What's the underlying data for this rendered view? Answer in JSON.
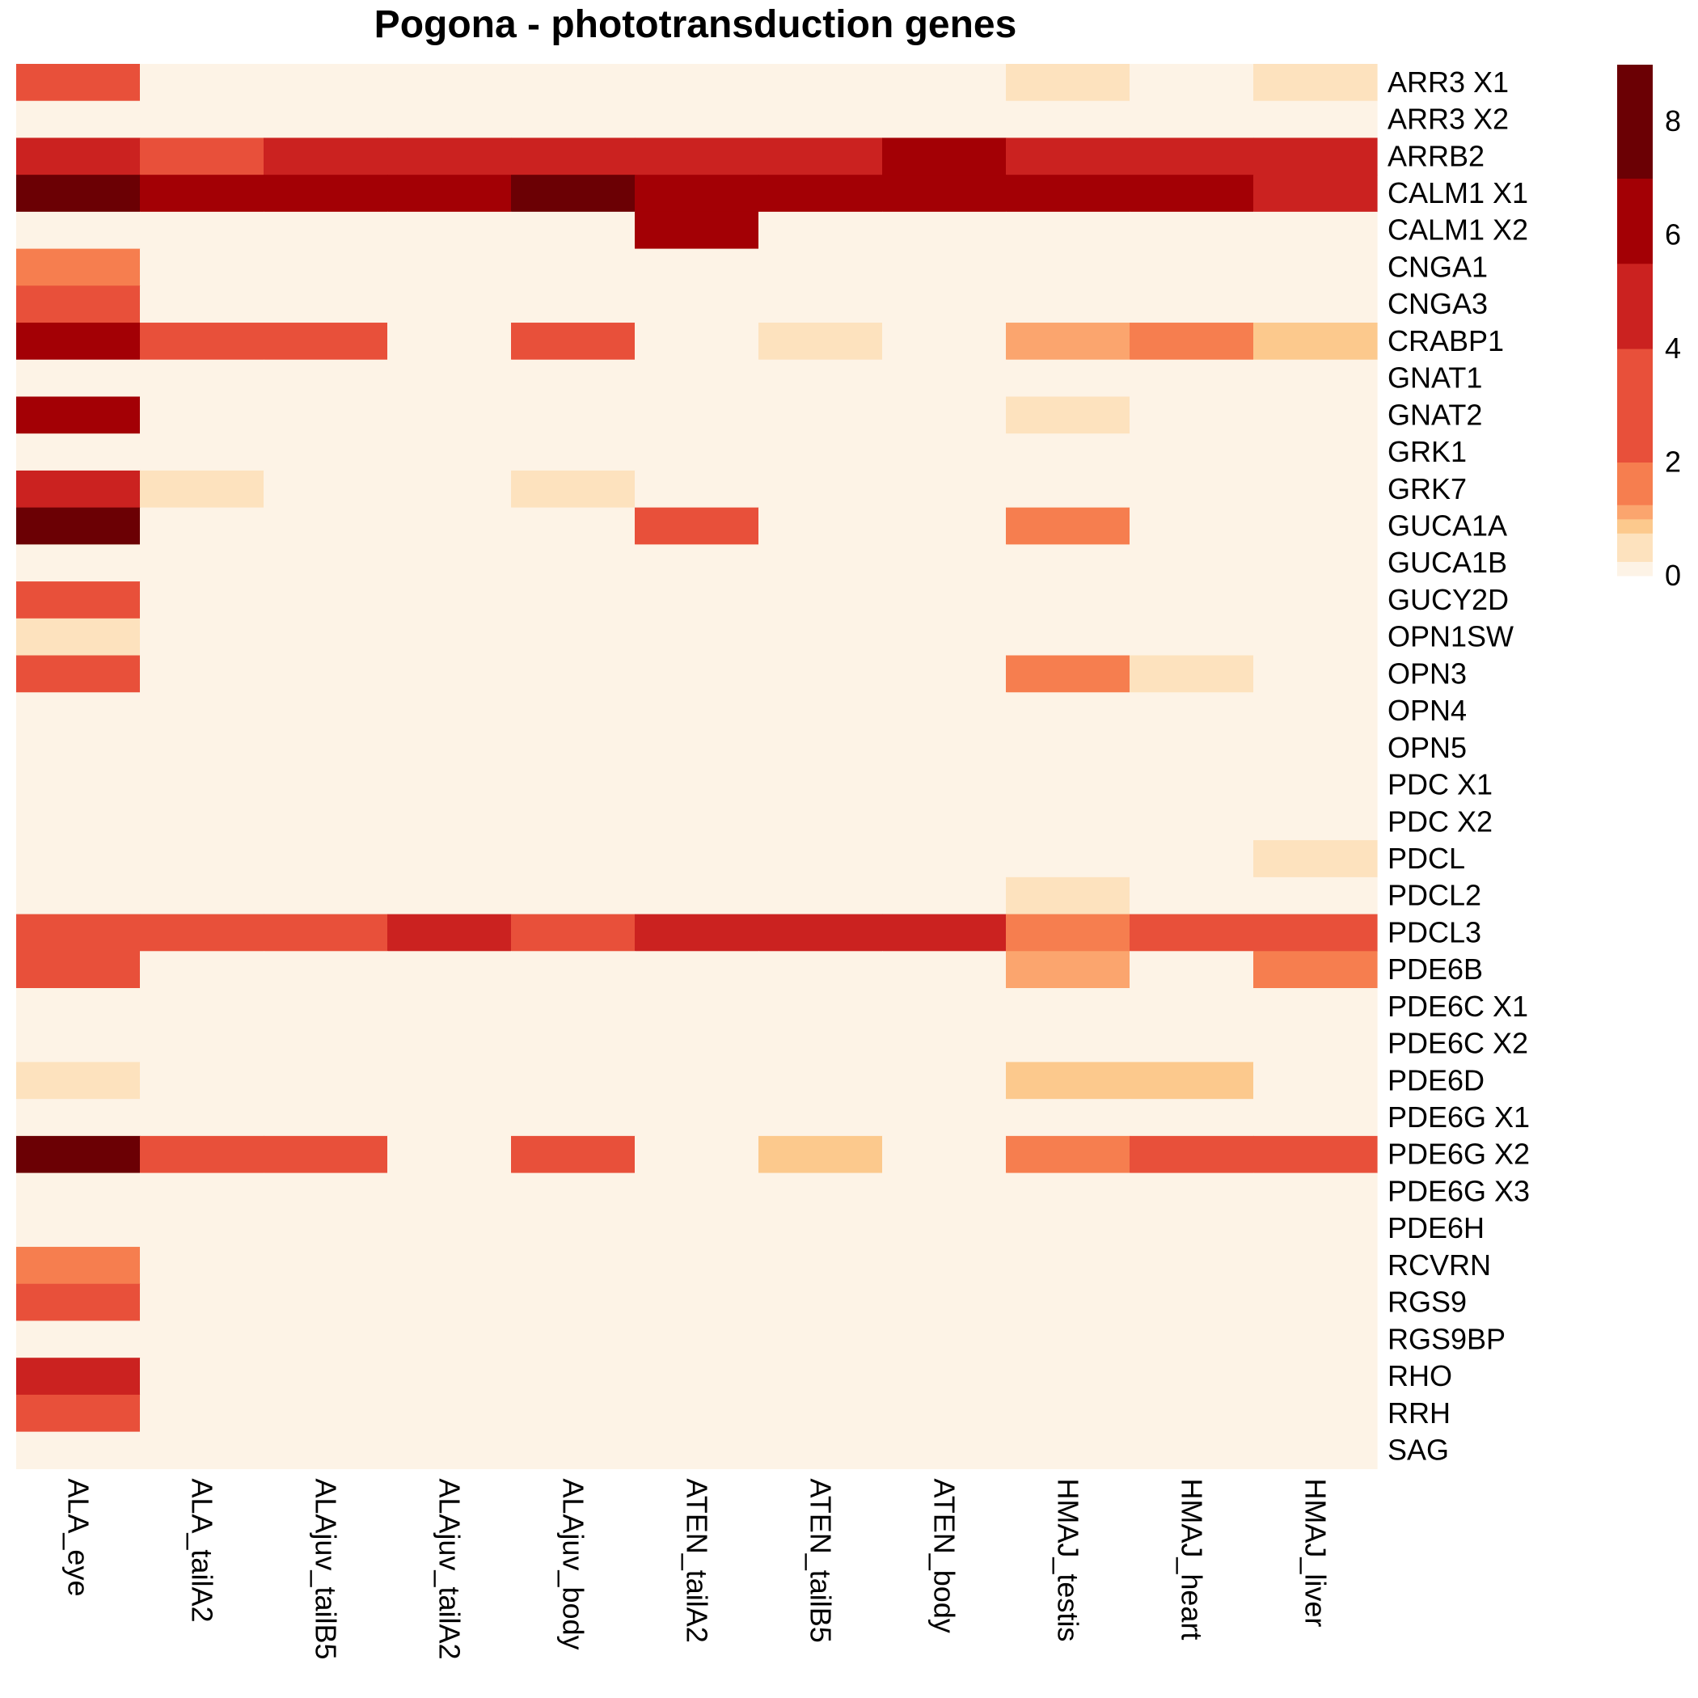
{
  "chart_data": {
    "type": "heatmap",
    "title": "Pogona - phototransduction genes",
    "columns": [
      "ALA_eye",
      "ALA_tailA2",
      "ALAjuv_tailB5",
      "ALAjuv_tailA2",
      "ALAjuv_body",
      "ATEN_tailA2",
      "ATEN_tailB5",
      "ATEN_body",
      "HMAJ_testis",
      "HMAJ_heart",
      "HMAJ_liver"
    ],
    "rows": [
      "ARR3   X1",
      "ARR3   X2",
      "ARRB2",
      "CALM1   X1",
      "CALM1   X2",
      "CNGA1",
      "CNGA3",
      "CRABP1",
      "GNAT1",
      "GNAT2",
      "GRK1",
      "GRK7",
      "GUCA1A",
      "GUCA1B",
      "GUCY2D",
      "OPN1SW",
      "OPN3",
      "OPN4",
      "OPN5",
      "PDC   X1",
      "PDC   X2",
      "PDCL",
      "PDCL2",
      "PDCL3",
      "PDE6B",
      "PDE6C   X1",
      "PDE6C   X2",
      "PDE6D",
      "PDE6G   X1",
      "PDE6G   X2",
      "PDE6G   X3",
      "PDE6H",
      "RCVRN",
      "RGS9",
      "RGS9BP",
      "RHO",
      "RRH",
      "SAG"
    ],
    "values": [
      [
        3,
        0,
        0,
        0,
        0,
        0,
        0,
        0,
        0.5,
        0,
        0.5
      ],
      [
        0,
        0,
        0,
        0,
        0,
        0,
        0,
        0,
        0,
        0,
        0
      ],
      [
        5,
        3,
        5,
        5,
        5,
        5,
        5,
        6.5,
        5,
        5,
        5
      ],
      [
        8,
        6.5,
        6.5,
        6.5,
        8,
        6.5,
        6.5,
        6.5,
        6.5,
        6.5,
        5
      ],
      [
        0,
        0,
        0,
        0,
        0,
        6.5,
        0,
        0,
        0,
        0,
        0
      ],
      [
        1.5,
        0,
        0,
        0,
        0,
        0,
        0,
        0,
        0,
        0,
        0
      ],
      [
        3,
        0,
        0,
        0,
        0,
        0,
        0,
        0,
        0,
        0,
        0
      ],
      [
        6.5,
        3,
        3,
        0,
        3,
        0,
        0.5,
        0,
        1.1,
        1.5,
        0.9
      ],
      [
        0,
        0,
        0,
        0,
        0,
        0,
        0,
        0,
        0,
        0,
        0
      ],
      [
        6.5,
        0,
        0,
        0,
        0,
        0,
        0,
        0,
        0.5,
        0,
        0
      ],
      [
        0,
        0,
        0,
        0,
        0,
        0,
        0,
        0,
        0,
        0,
        0
      ],
      [
        5,
        0.5,
        0,
        0,
        0.5,
        0,
        0,
        0,
        0,
        0,
        0
      ],
      [
        8,
        0,
        0,
        0,
        0,
        3,
        0,
        0,
        1.5,
        0,
        0
      ],
      [
        0,
        0,
        0,
        0,
        0,
        0,
        0,
        0,
        0,
        0,
        0
      ],
      [
        3,
        0,
        0,
        0,
        0,
        0,
        0,
        0,
        0,
        0,
        0
      ],
      [
        0.5,
        0,
        0,
        0,
        0,
        0,
        0,
        0,
        0,
        0,
        0
      ],
      [
        3,
        0,
        0,
        0,
        0,
        0,
        0,
        0,
        1.5,
        0.5,
        0
      ],
      [
        0,
        0,
        0,
        0,
        0,
        0,
        0,
        0,
        0,
        0,
        0
      ],
      [
        0,
        0,
        0,
        0,
        0,
        0,
        0,
        0,
        0,
        0,
        0
      ],
      [
        0,
        0,
        0,
        0,
        0,
        0,
        0,
        0,
        0,
        0,
        0
      ],
      [
        0,
        0,
        0,
        0,
        0,
        0,
        0,
        0,
        0,
        0,
        0
      ],
      [
        0,
        0,
        0,
        0,
        0,
        0,
        0,
        0,
        0,
        0,
        0.5
      ],
      [
        0,
        0,
        0,
        0,
        0,
        0,
        0,
        0,
        0.5,
        0,
        0
      ],
      [
        3,
        3,
        3,
        5,
        3,
        5,
        5,
        5,
        1.5,
        3,
        3
      ],
      [
        3,
        0,
        0,
        0,
        0,
        0,
        0,
        0,
        1.1,
        0,
        1.5
      ],
      [
        0,
        0,
        0,
        0,
        0,
        0,
        0,
        0,
        0,
        0,
        0
      ],
      [
        0,
        0,
        0,
        0,
        0,
        0,
        0,
        0,
        0,
        0,
        0
      ],
      [
        0.5,
        0,
        0,
        0,
        0,
        0,
        0,
        0,
        0.9,
        0.9,
        0
      ],
      [
        0,
        0,
        0,
        0,
        0,
        0,
        0,
        0,
        0,
        0,
        0
      ],
      [
        8,
        3,
        3,
        0,
        3,
        0,
        0.9,
        0,
        1.5,
        3,
        3
      ],
      [
        0,
        0,
        0,
        0,
        0,
        0,
        0,
        0,
        0,
        0,
        0
      ],
      [
        0,
        0,
        0,
        0,
        0,
        0,
        0,
        0,
        0,
        0,
        0
      ],
      [
        1.5,
        0,
        0,
        0,
        0,
        0,
        0,
        0,
        0,
        0,
        0
      ],
      [
        3,
        0,
        0,
        0,
        0,
        0,
        0,
        0,
        0,
        0,
        0
      ],
      [
        0,
        0,
        0,
        0,
        0,
        0,
        0,
        0,
        0,
        0,
        0
      ],
      [
        5,
        0,
        0,
        0,
        0,
        0,
        0,
        0,
        0,
        0,
        0
      ],
      [
        3,
        0,
        0,
        0,
        0,
        0,
        0,
        0,
        0,
        0,
        0
      ],
      [
        0,
        0,
        0,
        0,
        0,
        0,
        0,
        0,
        0,
        0,
        0
      ]
    ],
    "color_scale": {
      "breaks": [
        0,
        0.25,
        0.75,
        1,
        1.25,
        2,
        4,
        5.5,
        7,
        9
      ],
      "colors": [
        "#FDF3E6",
        "#FDE2BE",
        "#FCC98D",
        "#FBA56E",
        "#F67E4F",
        "#E8503A",
        "#CB2220",
        "#A30005",
        "#6B0004"
      ],
      "range": [
        0,
        9
      ],
      "ticks": [
        0,
        2,
        4,
        6,
        8
      ]
    },
    "legend_position": "top-right",
    "grid": false
  }
}
